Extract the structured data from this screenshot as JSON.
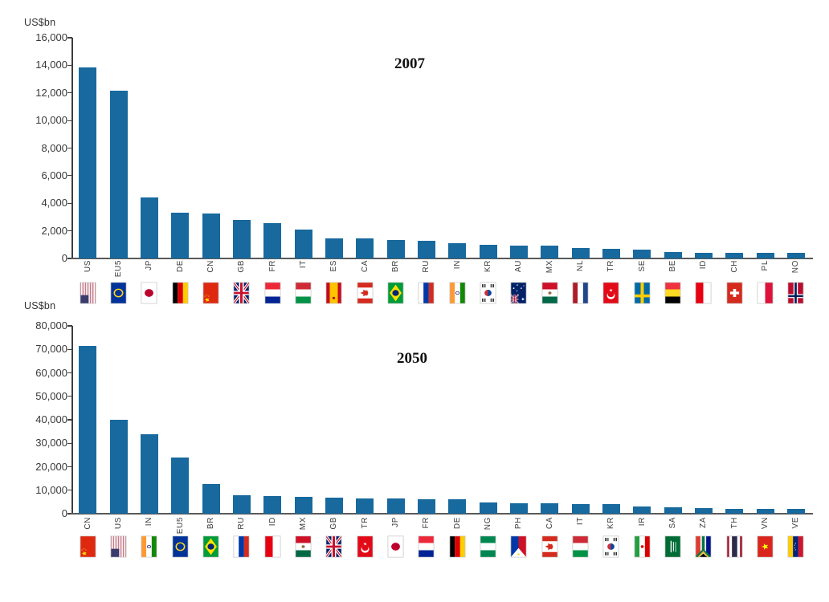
{
  "figure": {
    "background": "#ffffff",
    "bar_color": "#17699e",
    "axis_color": "#404040",
    "baseline_color": "#595959"
  },
  "chart_data": [
    {
      "type": "bar",
      "title": "2007",
      "ylabel": "US$bn",
      "ylim": [
        0,
        16000
      ],
      "tick_step": 2000,
      "grid": false,
      "legend": "none",
      "y_tick_labels": [
        "16,000",
        "14,000",
        "12,000",
        "10,000",
        "8,000",
        "6,000",
        "4,000",
        "2,000",
        "0"
      ],
      "categories": [
        "US",
        "EU5",
        "JP",
        "DE",
        "CN",
        "GB",
        "FR",
        "IT",
        "ES",
        "CA",
        "BR",
        "RU",
        "IN",
        "KR",
        "AU",
        "MX",
        "NL",
        "TR",
        "SE",
        "BE",
        "ID",
        "CH",
        "PL",
        "NO"
      ],
      "values": [
        13840,
        12150,
        4400,
        3320,
        3250,
        2770,
        2540,
        2120,
        1460,
        1440,
        1310,
        1290,
        1090,
        1010,
        940,
        915,
        780,
        715,
        630,
        470,
        435,
        425,
        415,
        380
      ],
      "flag_codes": [
        "us",
        "eu",
        "jp",
        "de",
        "cn",
        "gb",
        "fr",
        "it",
        "es",
        "ca",
        "br",
        "ru",
        "in",
        "kr",
        "au",
        "mx",
        "nl",
        "tr",
        "se",
        "be",
        "id",
        "ch",
        "pl",
        "no"
      ]
    },
    {
      "type": "bar",
      "title": "2050",
      "ylabel": "US$bn",
      "ylim": [
        0,
        80000
      ],
      "tick_step": 10000,
      "grid": false,
      "legend": "none",
      "y_tick_labels": [
        "80,000",
        "70,000",
        "60,000",
        "50,000",
        "40,000",
        "30,000",
        "20,000",
        "10,000",
        "0"
      ],
      "categories": [
        "CN",
        "US",
        "IN",
        "EU5",
        "BR",
        "RU",
        "ID",
        "MX",
        "GB",
        "TR",
        "JP",
        "FR",
        "DE",
        "NG",
        "PH",
        "CA",
        "IT",
        "KR",
        "IR",
        "SA",
        "ZA",
        "TH",
        "VN",
        "VE"
      ],
      "values": [
        71500,
        40000,
        34000,
        23800,
        12600,
        7800,
        7400,
        7200,
        6900,
        6600,
        6500,
        6300,
        6100,
        4800,
        4500,
        4350,
        4250,
        4000,
        3100,
        2600,
        2450,
        2200,
        2050,
        1950
      ],
      "flag_codes": [
        "cn",
        "us",
        "in",
        "eu",
        "br",
        "ru",
        "id",
        "mx",
        "gb",
        "tr",
        "jp",
        "fr",
        "de",
        "ng",
        "ph",
        "ca",
        "it",
        "kr",
        "ir",
        "sa",
        "za",
        "th",
        "vn",
        "ve"
      ]
    }
  ]
}
